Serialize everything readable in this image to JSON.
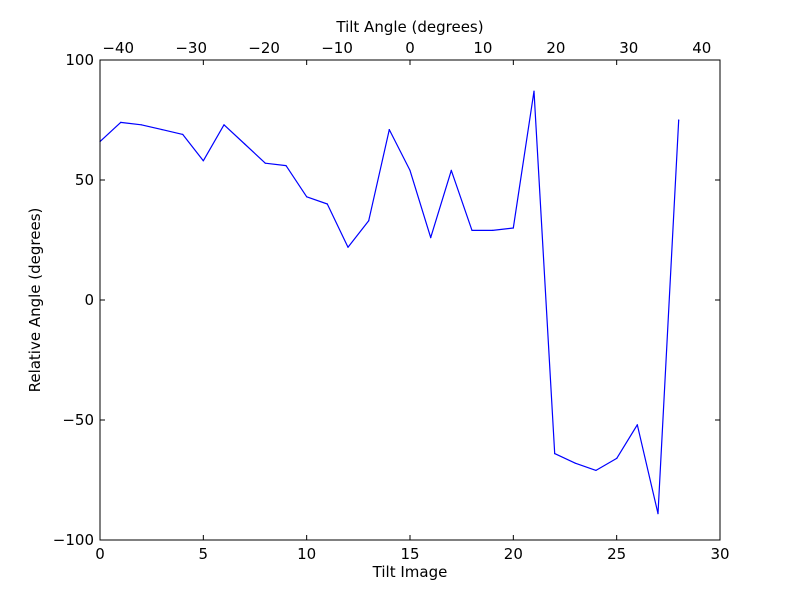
{
  "chart_data": {
    "type": "line",
    "xlabel": "Tilt Image",
    "ylabel": "Relative Angle (degrees)",
    "x2label": "Tilt Angle (degrees)",
    "xlim": [
      0,
      30
    ],
    "ylim": [
      -100,
      100
    ],
    "x2lim": [
      -42.5,
      42.5
    ],
    "xticks": [
      0,
      5,
      10,
      15,
      20,
      25,
      30
    ],
    "xtick_labels": [
      "0",
      "5",
      "10",
      "15",
      "20",
      "25",
      "30"
    ],
    "yticks": [
      -100,
      -50,
      0,
      50,
      100
    ],
    "ytick_labels": [
      "−100",
      "−50",
      "0",
      "50",
      "100"
    ],
    "x2ticks": [
      -40,
      -30,
      -20,
      -10,
      0,
      10,
      20,
      30,
      40
    ],
    "x2tick_labels": [
      "−40",
      "−30",
      "−20",
      "−10",
      "0",
      "10",
      "20",
      "30",
      "40"
    ],
    "grid": false,
    "series": [
      {
        "color": "#0000ff",
        "x": [
          0,
          1,
          2,
          3,
          4,
          5,
          6,
          7,
          8,
          9,
          10,
          11,
          12,
          13,
          14,
          15,
          16,
          17,
          18,
          19,
          20,
          21,
          22,
          23,
          24,
          25,
          26,
          27,
          28
        ],
        "y": [
          66,
          74,
          73,
          71,
          69,
          58,
          73,
          65,
          57,
          56,
          43,
          40,
          22,
          33,
          71,
          54,
          26,
          54,
          29,
          29,
          30,
          87,
          -64,
          -68,
          -71,
          -66,
          -52,
          -89,
          75
        ]
      }
    ]
  }
}
